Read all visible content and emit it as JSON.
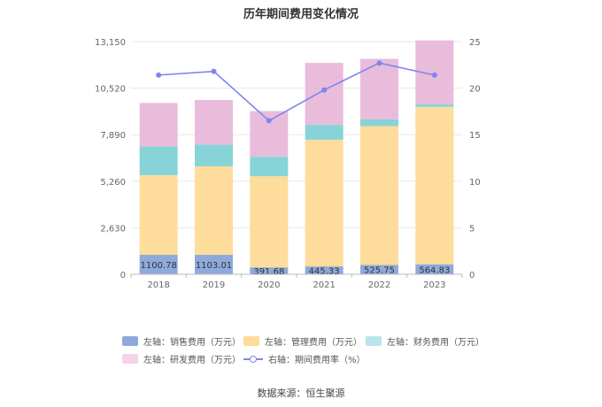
{
  "title": "历年期间费用变化情况",
  "source": "数据来源：恒生聚源",
  "chart_data": {
    "type": "bar",
    "stacked": true,
    "categories": [
      "2018",
      "2019",
      "2020",
      "2021",
      "2022",
      "2023"
    ],
    "left_axis": {
      "min": 0,
      "max": 13150,
      "ticks": [
        "0",
        "2,630",
        "5,260",
        "7,890",
        "10,520",
        "13,150"
      ]
    },
    "right_axis": {
      "min": 0,
      "max": 25,
      "ticks": [
        "0",
        "5",
        "10",
        "15",
        "20",
        "25"
      ]
    },
    "series": [
      {
        "name": "左轴：销售费用（万元）",
        "color": "#8eaadb",
        "values": [
          1100.78,
          1103.01,
          391.68,
          445.33,
          525.75,
          564.83
        ],
        "labels": [
          "1100.78",
          "1103.01",
          "391.68",
          "445.33",
          "525.75",
          "564.83"
        ]
      },
      {
        "name": "左轴：管理费用（万元）",
        "color": "#fedc9b",
        "values": [
          4500,
          5000,
          5150,
          7160,
          7850,
          8900
        ]
      },
      {
        "name": "左轴：财务费用（万元）",
        "color": "#86d4d8",
        "values": [
          1630,
          1220,
          1100,
          840,
          380,
          150
        ]
      },
      {
        "name": "左轴：研发费用（万元）",
        "color": "#e9bcdb",
        "values": [
          2450,
          2530,
          2580,
          3500,
          3420,
          3600
        ]
      },
      {
        "name": "右轴：期间费用率（%）",
        "color": "#7f84f0",
        "type": "line",
        "axis": "right",
        "values": [
          21.4,
          21.8,
          16.5,
          19.8,
          22.7,
          21.4
        ]
      }
    ]
  }
}
